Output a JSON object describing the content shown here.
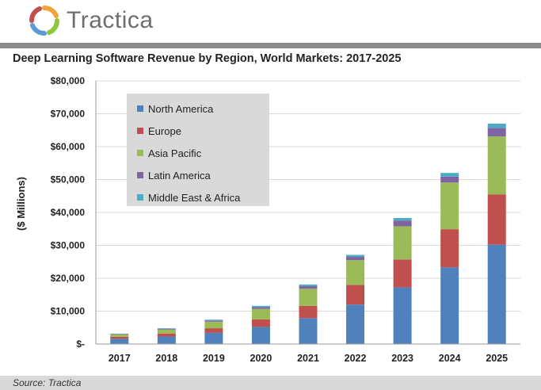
{
  "header": {
    "brand": "Tractica"
  },
  "colors": {
    "North America": "#4f81bd",
    "Europe": "#c0504d",
    "Asia Pacific": "#9bbb59",
    "Latin America": "#8064a2",
    "Middle East & Africa": "#4bacc6",
    "rule": "#8c8c8c",
    "footer": "#d9d9d9"
  },
  "chart_data": {
    "type": "bar",
    "stacked": true,
    "title": "Deep Learning Software Revenue by Region, World Markets: 2017-2025",
    "ylabel": "($ Millions)",
    "xlabel": "",
    "categories": [
      "2017",
      "2018",
      "2019",
      "2020",
      "2021",
      "2022",
      "2023",
      "2024",
      "2025"
    ],
    "ylim": [
      0,
      80000
    ],
    "yticks": [
      "$-",
      "$10,000",
      "$20,000",
      "$30,000",
      "$40,000",
      "$50,000",
      "$60,000",
      "$70,000",
      "$80,000"
    ],
    "grid": true,
    "legend_position": "top-left",
    "series": [
      {
        "name": "North America",
        "values": [
          1600,
          2300,
          3400,
          5200,
          7900,
          12000,
          17200,
          23300,
          30200
        ]
      },
      {
        "name": "Europe",
        "values": [
          600,
          900,
          1400,
          2300,
          3700,
          6000,
          8500,
          11600,
          15300
        ]
      },
      {
        "name": "Asia Pacific",
        "values": [
          700,
          1200,
          2000,
          3200,
          5200,
          7500,
          10100,
          14200,
          17600
        ]
      },
      {
        "name": "Latin America",
        "values": [
          150,
          250,
          350,
          550,
          800,
          1000,
          1700,
          1800,
          2600
        ]
      },
      {
        "name": "Middle East & Africa",
        "values": [
          100,
          150,
          250,
          350,
          500,
          600,
          800,
          1100,
          1300
        ]
      }
    ]
  },
  "footer": {
    "source": "Source: Tractica"
  }
}
